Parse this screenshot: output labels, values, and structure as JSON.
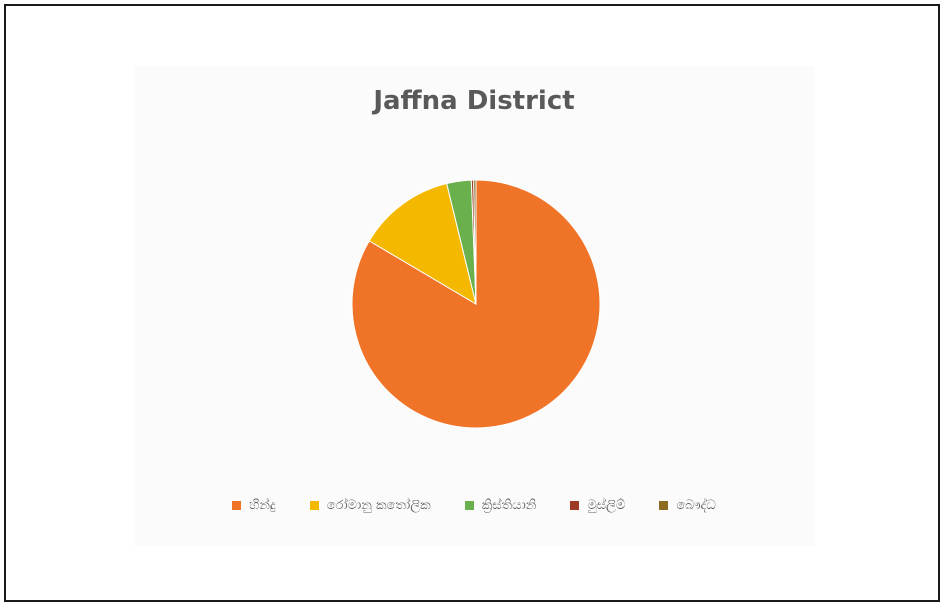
{
  "chart_data": {
    "type": "pie",
    "title": "Jaffna District",
    "categories": [
      "හින්දු",
      "රෝමානු කතෝලික",
      "ක්‍රිස්තියානි",
      "මුස්ලිම්",
      "බෞද්ධ"
    ],
    "values": [
      83.5,
      12.7,
      3.2,
      0.3,
      0.3
    ],
    "colors": [
      "#f07428",
      "#f5b800",
      "#6ab04c",
      "#9e3a26",
      "#8c6d1f"
    ],
    "legend_position": "bottom"
  }
}
